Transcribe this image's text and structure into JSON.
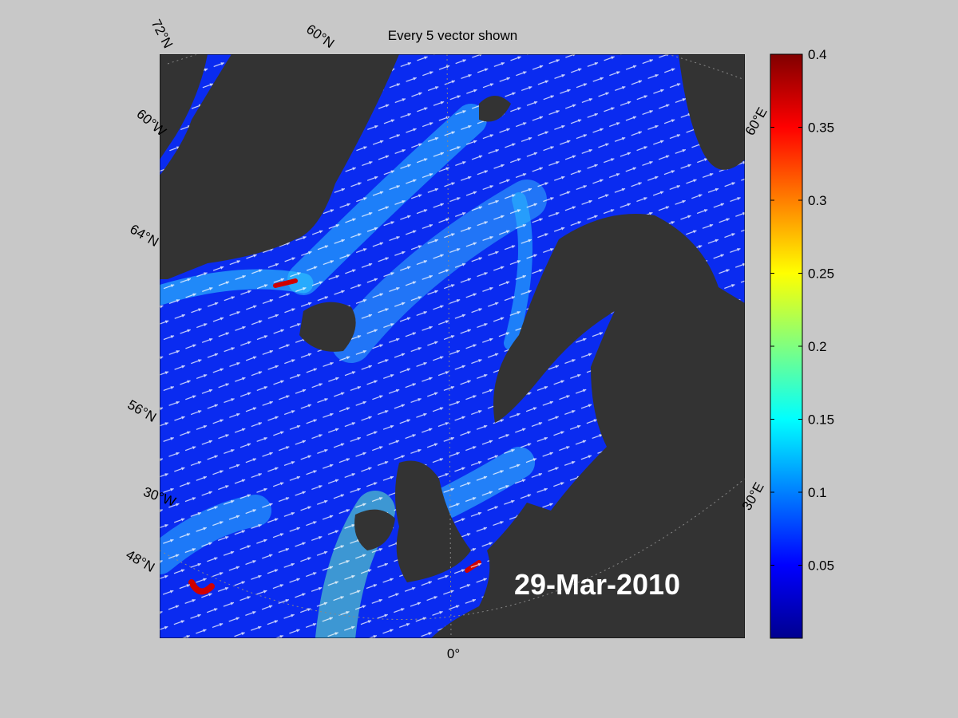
{
  "title": "Every 5 vector shown",
  "date": "29-Mar-2010",
  "grid_labels": {
    "lat72": "72°N",
    "lat60": "60°N",
    "lon60w": "60°W",
    "lat64": "64°N",
    "lat56": "56°N",
    "lon30w": "30°W",
    "lat48": "48°N",
    "lon0": "0°",
    "lon60e": "60°E",
    "lon30e": "30°E"
  },
  "colorbar": {
    "clim": [
      0,
      0.4
    ],
    "ticks": [
      0.05,
      0.1,
      0.15,
      0.2,
      0.25,
      0.3,
      0.35,
      0.4
    ]
  }
}
